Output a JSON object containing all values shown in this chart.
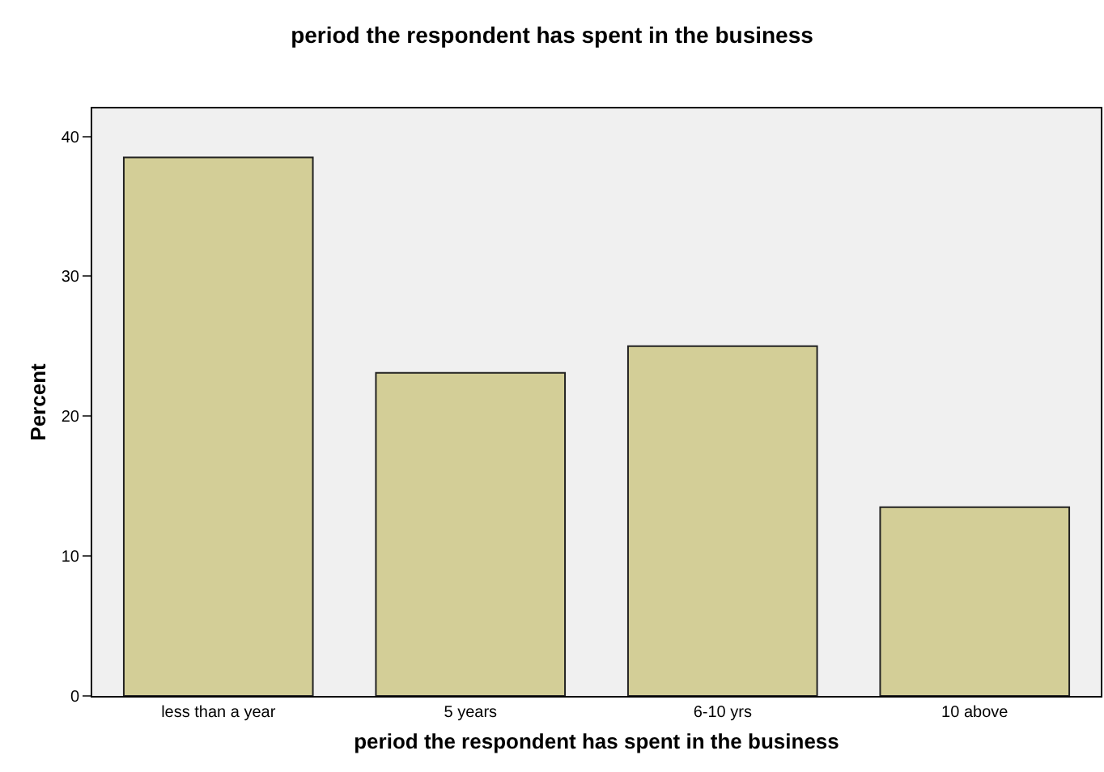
{
  "chart_data": {
    "type": "bar",
    "title": "period the respondent has spent in the business",
    "xlabel": "period the respondent has spent in the business",
    "ylabel": "Percent",
    "categories": [
      "less than a year",
      "5 years",
      "6-10 yrs",
      "10 above"
    ],
    "values": [
      38.5,
      23.1,
      25.0,
      13.5
    ],
    "color": "#d3ce97",
    "ylim": [
      0,
      42
    ],
    "yticks": [
      0,
      10,
      20,
      30,
      40
    ],
    "grid": false
  }
}
